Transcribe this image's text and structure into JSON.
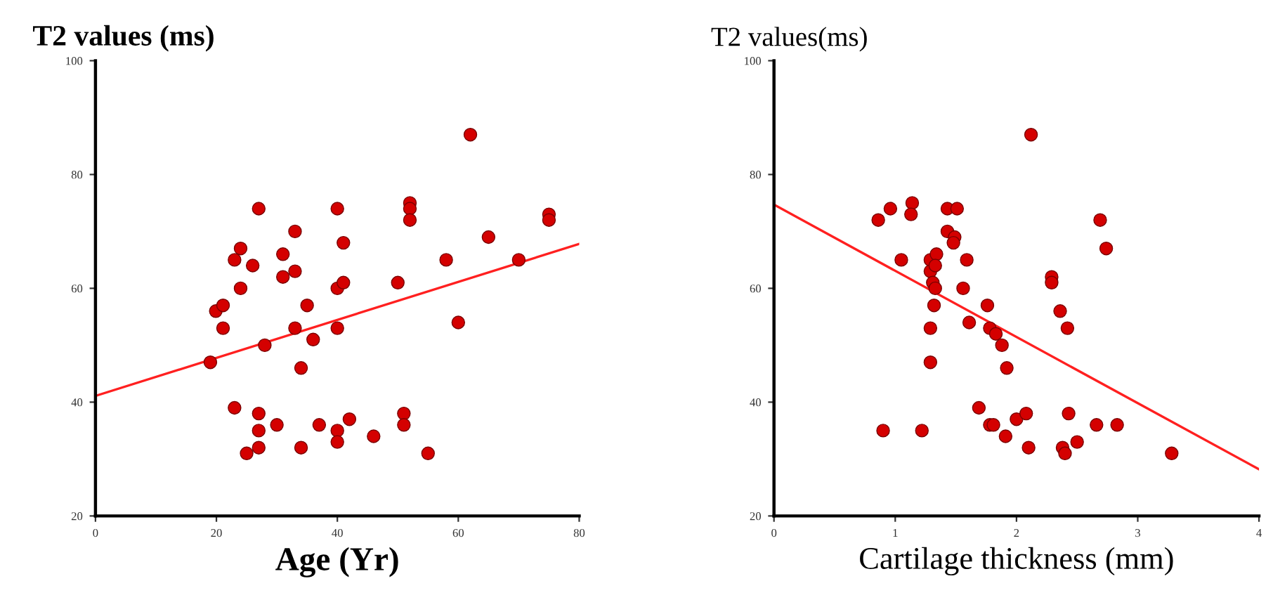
{
  "chart_data": [
    {
      "type": "scatter",
      "ylabel": "T2 values (ms)",
      "xlabel": "Age (Yr)",
      "xlim": [
        0,
        80
      ],
      "xticks": [
        0,
        20,
        40,
        60,
        80
      ],
      "ylim": [
        20,
        100
      ],
      "yticks": [
        20,
        40,
        60,
        80,
        100
      ],
      "grid": false,
      "series": [
        {
          "marker": "circle",
          "color": "#d40000",
          "x": [
            19,
            19.9,
            21.1,
            21.1,
            23,
            23,
            24,
            24,
            25,
            26,
            27,
            27,
            27,
            27,
            28,
            30,
            31,
            31,
            33,
            33,
            33,
            34,
            34,
            35,
            36,
            37,
            40,
            40,
            40,
            40,
            40,
            41,
            41,
            42,
            46,
            50,
            51,
            51,
            52,
            52,
            52,
            55,
            58,
            60,
            62,
            65,
            70,
            75,
            75
          ],
          "values": [
            47,
            56,
            57,
            53,
            65,
            39,
            67,
            60,
            31,
            64,
            74,
            38,
            35,
            32,
            50,
            36,
            66,
            62,
            70,
            63,
            53,
            46,
            32,
            57,
            51,
            36,
            74,
            60,
            53,
            35,
            33,
            68,
            61,
            37,
            34,
            61,
            38,
            36,
            75,
            74,
            72,
            31,
            65,
            54,
            87,
            69,
            65,
            73,
            72
          ]
        },
        {
          "type": "line",
          "color": "#ff2020",
          "x": [
            0,
            80
          ],
          "values": [
            41.1,
            67.8
          ]
        }
      ]
    },
    {
      "type": "scatter",
      "ylabel": "T2 values(ms)",
      "xlabel": "Cartilage thickness (mm)",
      "xlim": [
        0,
        4
      ],
      "xticks": [
        0,
        1,
        2,
        3,
        4
      ],
      "ylim": [
        20,
        100
      ],
      "yticks": [
        20,
        40,
        60,
        80,
        100
      ],
      "grid": false,
      "series": [
        {
          "marker": "circle",
          "color": "#d40000",
          "x": [
            0.86,
            0.9,
            0.96,
            1.05,
            1.14,
            1.13,
            1.22,
            1.29,
            1.29,
            1.34,
            1.33,
            1.31,
            1.33,
            1.32,
            1.29,
            1.29,
            1.43,
            1.51,
            1.43,
            1.49,
            1.48,
            1.59,
            1.56,
            1.61,
            1.69,
            1.76,
            1.78,
            1.78,
            1.81,
            1.83,
            1.88,
            1.92,
            1.91,
            2.0,
            2.08,
            2.1,
            2.12,
            2.29,
            2.29,
            2.36,
            2.42,
            2.43,
            2.38,
            2.4,
            2.5,
            2.66,
            2.69,
            2.74,
            2.83,
            3.28
          ],
          "values": [
            72,
            35,
            74,
            65,
            75,
            73,
            35,
            65,
            63,
            66,
            64,
            61,
            60,
            57,
            53,
            47,
            74,
            74,
            70,
            69,
            68,
            65,
            60,
            54,
            39,
            57,
            53,
            36,
            36,
            52,
            50,
            46,
            34,
            37,
            38,
            32,
            87,
            62,
            61,
            56,
            53,
            38,
            32,
            31,
            33,
            36,
            72,
            67,
            36,
            31
          ]
        },
        {
          "type": "line",
          "color": "#ff2020",
          "x": [
            0,
            4
          ],
          "values": [
            74.7,
            28.2
          ]
        }
      ]
    }
  ]
}
